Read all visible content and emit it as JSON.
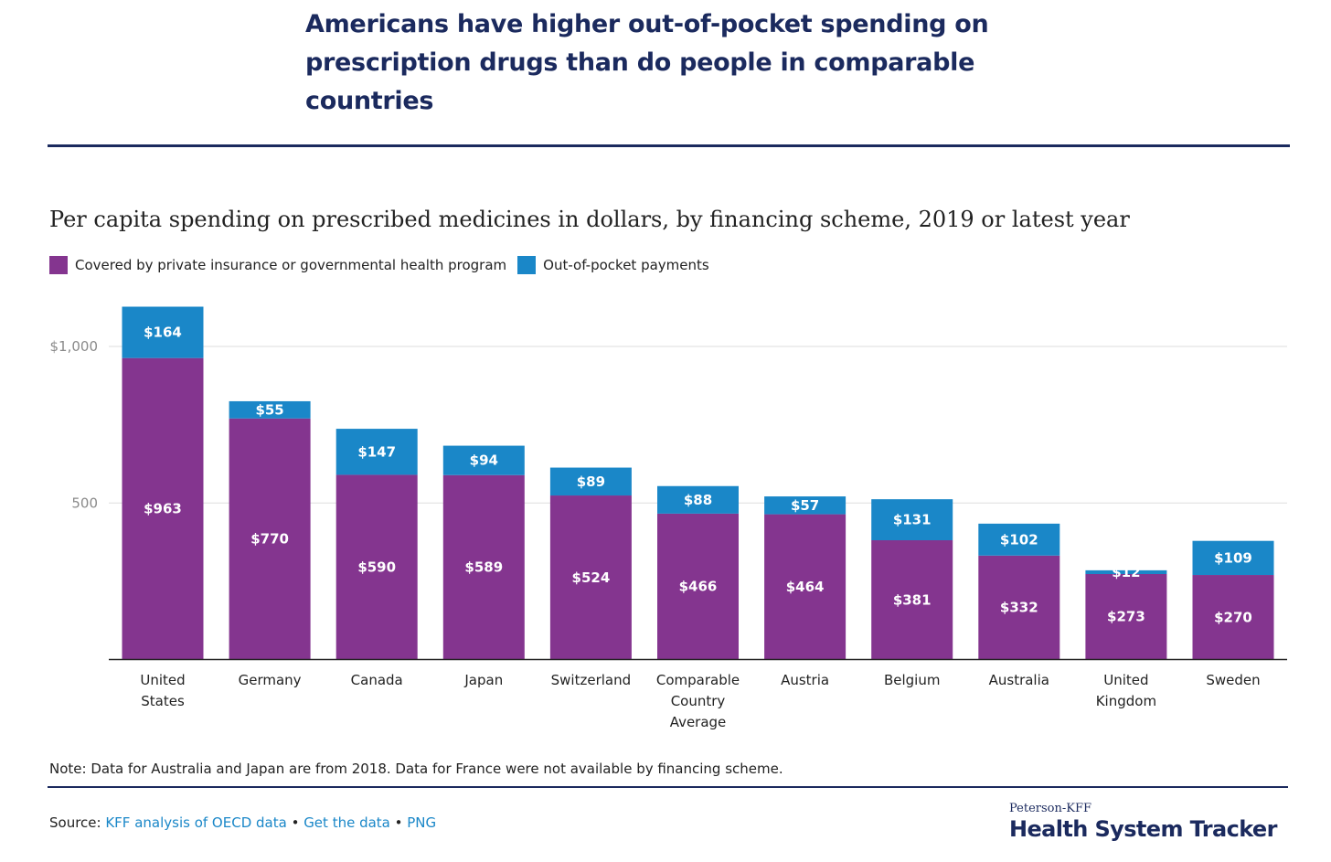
{
  "title": "Americans have higher out-of-pocket spending on prescription drugs than do people in comparable countries",
  "subtitle": "Per capita spending on prescribed medicines in dollars, by financing scheme, 2019 or latest year",
  "colors": {
    "title": "#1b2a5e",
    "covered": "#84358f",
    "oop": "#1a87c8",
    "link": "#1a87c8"
  },
  "legend": [
    {
      "label": "Covered by private insurance or governmental health program",
      "color": "#84358f"
    },
    {
      "label": "Out-of-pocket payments",
      "color": "#1a87c8"
    }
  ],
  "chart_data": {
    "type": "bar",
    "stacked": true,
    "categories": [
      [
        "United",
        "States"
      ],
      [
        "Germany"
      ],
      [
        "Canada"
      ],
      [
        "Japan"
      ],
      [
        "Switzerland"
      ],
      [
        "Comparable",
        "Country",
        "Average"
      ],
      [
        "Austria"
      ],
      [
        "Belgium"
      ],
      [
        "Australia"
      ],
      [
        "United",
        "Kingdom"
      ],
      [
        "Sweden"
      ]
    ],
    "series": [
      {
        "name": "Covered by private insurance or governmental health program",
        "values": [
          963,
          770,
          590,
          589,
          524,
          466,
          464,
          381,
          332,
          273,
          270
        ],
        "labels": [
          "$963",
          "$770",
          "$590",
          "$589",
          "$524",
          "$466",
          "$464",
          "$381",
          "$332",
          "$273",
          "$270"
        ],
        "color": "#84358f"
      },
      {
        "name": "Out-of-pocket payments",
        "values": [
          164,
          55,
          147,
          94,
          89,
          88,
          57,
          131,
          102,
          12,
          109
        ],
        "labels": [
          "$164",
          "$55",
          "$147",
          "$94",
          "$89",
          "$88",
          "$57",
          "$131",
          "$102",
          "$12",
          "$109"
        ],
        "color": "#1a87c8"
      }
    ],
    "yticks": [
      {
        "value": 500,
        "label": "500"
      },
      {
        "value": 1000,
        "label": "$1,000"
      }
    ],
    "ylim": [
      0,
      1127
    ],
    "grid": true
  },
  "note": "Note: Data for Australia and Japan are from 2018. Data for France were not available by financing scheme.",
  "source": {
    "prefix": "Source: ",
    "link1": "KFF analysis of OECD data",
    "sep1": " • ",
    "link2": "Get the data",
    "sep2": " • ",
    "link3": "PNG"
  },
  "brand": {
    "small": "Peterson-KFF",
    "big": "Health System Tracker"
  }
}
